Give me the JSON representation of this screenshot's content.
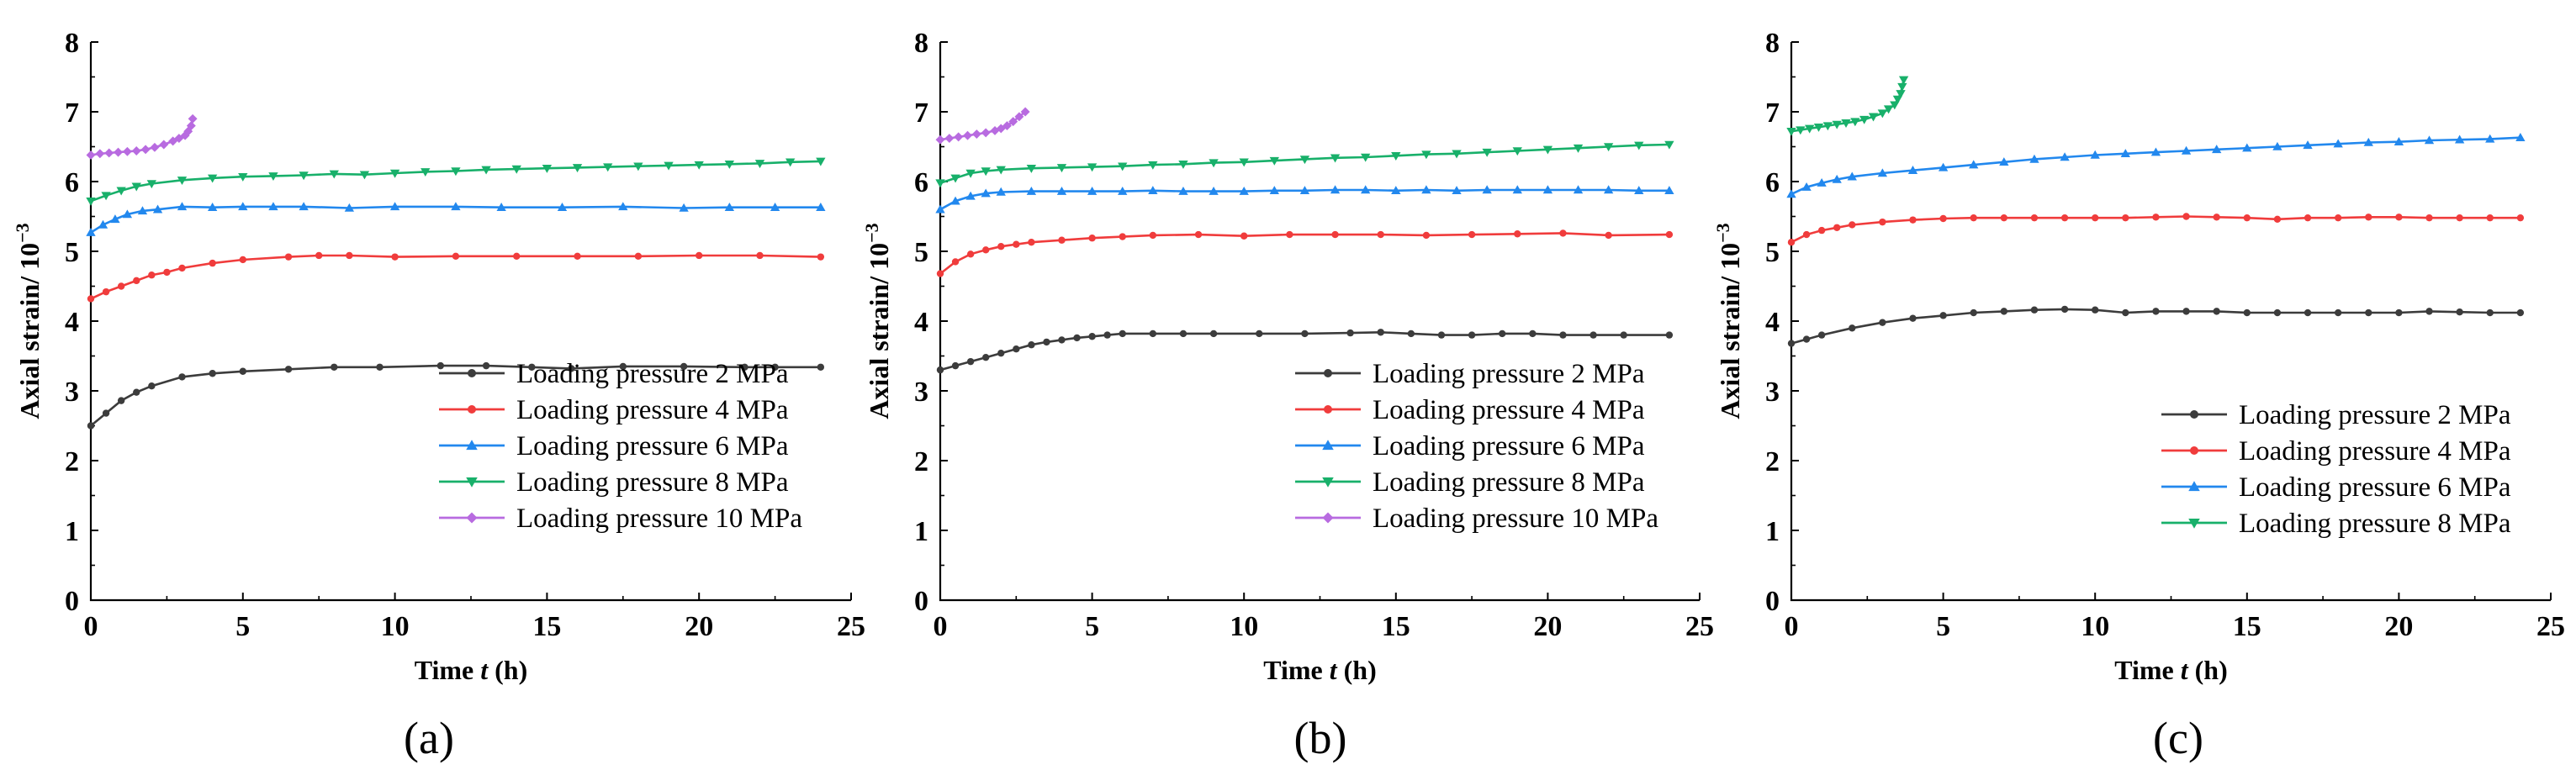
{
  "chart_data": [
    {
      "type": "line",
      "panel_label": "(a)",
      "xlabel_prefix": "Time ",
      "xlabel_var": "t",
      "xlabel_suffix": " (h)",
      "ylabel_prefix": "Axial strain/ 10",
      "ylabel_exp": "−3",
      "xlim": [
        0,
        25
      ],
      "ylim": [
        0,
        8
      ],
      "x_ticks": [
        "0",
        "5",
        "10",
        "15",
        "20",
        "25"
      ],
      "y_ticks": [
        "0",
        "1",
        "2",
        "3",
        "4",
        "5",
        "6",
        "7",
        "8"
      ],
      "legend_position": "lower-right",
      "series": [
        {
          "name": "Loading pressure 2 MPa",
          "color": "#3c3c3c",
          "marker": "circle",
          "x": [
            0,
            0.5,
            1,
            1.5,
            2,
            3,
            4,
            5,
            6.5,
            8,
            9.5,
            11.5,
            13,
            14.5,
            15.8,
            17.5,
            19.5,
            21.5,
            22.5,
            24
          ],
          "y": [
            2.5,
            2.68,
            2.86,
            2.98,
            3.07,
            3.2,
            3.25,
            3.28,
            3.31,
            3.34,
            3.34,
            3.36,
            3.36,
            3.34,
            3.32,
            3.35,
            3.35,
            3.34,
            3.34,
            3.34
          ]
        },
        {
          "name": "Loading pressure 4 MPa",
          "color": "#f03c3c",
          "marker": "circle",
          "x": [
            0,
            0.5,
            1,
            1.5,
            2,
            2.5,
            3,
            4,
            5,
            6.5,
            7.5,
            8.5,
            10,
            12,
            14,
            16,
            18,
            20,
            22,
            24
          ],
          "y": [
            4.32,
            4.42,
            4.5,
            4.58,
            4.66,
            4.7,
            4.76,
            4.83,
            4.88,
            4.92,
            4.94,
            4.94,
            4.92,
            4.93,
            4.93,
            4.93,
            4.93,
            4.94,
            4.94,
            4.92
          ]
        },
        {
          "name": "Loading pressure 6 MPa",
          "color": "#2288ee",
          "marker": "triangle-up",
          "x": [
            0,
            0.4,
            0.8,
            1.2,
            1.7,
            2.2,
            3,
            4,
            5,
            6,
            7,
            8.5,
            10,
            12,
            13.5,
            15.5,
            17.5,
            19.5,
            21,
            22.5,
            24
          ],
          "y": [
            5.27,
            5.38,
            5.46,
            5.53,
            5.58,
            5.6,
            5.64,
            5.63,
            5.64,
            5.64,
            5.64,
            5.62,
            5.64,
            5.64,
            5.63,
            5.63,
            5.64,
            5.62,
            5.63,
            5.63,
            5.63
          ]
        },
        {
          "name": "Loading pressure 8 MPa",
          "color": "#18b06a",
          "marker": "triangle-down",
          "x": [
            0,
            0.5,
            1,
            1.5,
            2,
            3,
            4,
            5,
            6,
            7,
            8,
            9,
            10,
            11,
            12,
            13,
            14,
            15,
            16,
            17,
            18,
            19,
            20,
            21,
            22,
            23,
            24
          ],
          "y": [
            5.72,
            5.8,
            5.87,
            5.93,
            5.97,
            6.02,
            6.05,
            6.07,
            6.08,
            6.09,
            6.11,
            6.1,
            6.12,
            6.14,
            6.15,
            6.17,
            6.18,
            6.19,
            6.2,
            6.21,
            6.22,
            6.23,
            6.24,
            6.25,
            6.26,
            6.28,
            6.29
          ]
        },
        {
          "name": "Loading pressure 10 MPa",
          "color": "#b86be0",
          "marker": "diamond",
          "x": [
            0,
            0.3,
            0.6,
            0.9,
            1.2,
            1.5,
            1.8,
            2.1,
            2.4,
            2.7,
            2.9,
            3.1,
            3.2,
            3.3,
            3.35
          ],
          "y": [
            6.38,
            6.4,
            6.41,
            6.42,
            6.43,
            6.44,
            6.46,
            6.49,
            6.53,
            6.58,
            6.62,
            6.66,
            6.72,
            6.8,
            6.9
          ]
        }
      ]
    },
    {
      "type": "line",
      "panel_label": "(b)",
      "xlabel_prefix": "Time ",
      "xlabel_var": "t",
      "xlabel_suffix": " (h)",
      "ylabel_prefix": "Axial strain/ 10",
      "ylabel_exp": "−3",
      "xlim": [
        0,
        25
      ],
      "ylim": [
        0,
        8
      ],
      "x_ticks": [
        "0",
        "5",
        "10",
        "15",
        "20",
        "25"
      ],
      "y_ticks": [
        "0",
        "1",
        "2",
        "3",
        "4",
        "5",
        "6",
        "7",
        "8"
      ],
      "legend_position": "lower-right",
      "series": [
        {
          "name": "Loading pressure 2 MPa",
          "color": "#3c3c3c",
          "marker": "circle",
          "x": [
            0,
            0.5,
            1,
            1.5,
            2,
            2.5,
            3,
            3.5,
            4,
            4.5,
            5,
            5.5,
            6,
            7,
            8,
            9,
            10.5,
            12,
            13.5,
            14.5,
            15.5,
            16.5,
            17.5,
            18.5,
            19.5,
            20.5,
            21.5,
            22.5,
            24
          ],
          "y": [
            3.3,
            3.36,
            3.42,
            3.48,
            3.54,
            3.6,
            3.66,
            3.7,
            3.73,
            3.76,
            3.78,
            3.8,
            3.82,
            3.82,
            3.82,
            3.82,
            3.82,
            3.82,
            3.83,
            3.84,
            3.82,
            3.8,
            3.8,
            3.82,
            3.82,
            3.8,
            3.8,
            3.8,
            3.8
          ]
        },
        {
          "name": "Loading pressure 4 MPa",
          "color": "#f03c3c",
          "marker": "circle",
          "x": [
            0,
            0.5,
            1,
            1.5,
            2,
            2.5,
            3,
            4,
            5,
            6,
            7,
            8.5,
            10,
            11.5,
            13,
            14.5,
            16,
            17.5,
            19,
            20.5,
            22,
            24
          ],
          "y": [
            4.68,
            4.85,
            4.96,
            5.02,
            5.07,
            5.1,
            5.13,
            5.16,
            5.19,
            5.21,
            5.23,
            5.24,
            5.22,
            5.24,
            5.24,
            5.24,
            5.23,
            5.24,
            5.25,
            5.26,
            5.23,
            5.24
          ]
        },
        {
          "name": "Loading pressure 6 MPa",
          "color": "#2288ee",
          "marker": "triangle-up",
          "x": [
            0,
            0.5,
            1,
            1.5,
            2,
            3,
            4,
            5,
            6,
            7,
            8,
            9,
            10,
            11,
            12,
            13,
            14,
            15,
            16,
            17,
            18,
            19,
            20,
            21,
            22,
            23,
            24
          ],
          "y": [
            5.6,
            5.72,
            5.79,
            5.83,
            5.85,
            5.86,
            5.86,
            5.86,
            5.86,
            5.87,
            5.86,
            5.86,
            5.86,
            5.87,
            5.87,
            5.88,
            5.88,
            5.87,
            5.88,
            5.87,
            5.88,
            5.88,
            5.88,
            5.88,
            5.88,
            5.87,
            5.87
          ]
        },
        {
          "name": "Loading pressure 8 MPa",
          "color": "#18b06a",
          "marker": "triangle-down",
          "x": [
            0,
            0.5,
            1,
            1.5,
            2,
            3,
            4,
            5,
            6,
            7,
            8,
            9,
            10,
            11,
            12,
            13,
            14,
            15,
            16,
            17,
            18,
            19,
            20,
            21,
            22,
            23,
            24
          ],
          "y": [
            5.98,
            6.05,
            6.12,
            6.15,
            6.17,
            6.19,
            6.2,
            6.21,
            6.22,
            6.24,
            6.25,
            6.27,
            6.28,
            6.3,
            6.32,
            6.34,
            6.35,
            6.37,
            6.39,
            6.4,
            6.42,
            6.44,
            6.46,
            6.48,
            6.5,
            6.52,
            6.53
          ]
        },
        {
          "name": "Loading pressure 10 MPa",
          "color": "#b86be0",
          "marker": "diamond",
          "x": [
            0,
            0.3,
            0.6,
            0.9,
            1.2,
            1.5,
            1.8,
            2.0,
            2.2,
            2.4,
            2.6,
            2.8
          ],
          "y": [
            6.6,
            6.62,
            6.64,
            6.66,
            6.68,
            6.7,
            6.73,
            6.76,
            6.8,
            6.86,
            6.93,
            7.0
          ]
        }
      ]
    },
    {
      "type": "line",
      "panel_label": "(c)",
      "xlabel_prefix": "Time ",
      "xlabel_var": "t",
      "xlabel_suffix": " (h)",
      "ylabel_prefix": "Axial strain/ 10",
      "ylabel_exp": "−3",
      "xlim": [
        0,
        25
      ],
      "ylim": [
        0,
        8
      ],
      "x_ticks": [
        "0",
        "5",
        "10",
        "15",
        "20",
        "25"
      ],
      "y_ticks": [
        "0",
        "1",
        "2",
        "3",
        "4",
        "5",
        "6",
        "7",
        "8"
      ],
      "legend_position": "lower-right",
      "series": [
        {
          "name": "Loading pressure 2 MPa",
          "color": "#3c3c3c",
          "marker": "circle",
          "x": [
            0,
            0.5,
            1,
            2,
            3,
            4,
            5,
            6,
            7,
            8,
            9,
            10,
            11,
            12,
            13,
            14,
            15,
            16,
            17,
            18,
            19,
            20,
            21,
            22,
            23,
            24
          ],
          "y": [
            3.68,
            3.74,
            3.8,
            3.9,
            3.98,
            4.04,
            4.08,
            4.12,
            4.14,
            4.16,
            4.17,
            4.16,
            4.12,
            4.14,
            4.14,
            4.14,
            4.12,
            4.12,
            4.12,
            4.12,
            4.12,
            4.12,
            4.14,
            4.13,
            4.12,
            4.12
          ]
        },
        {
          "name": "Loading pressure 4 MPa",
          "color": "#f03c3c",
          "marker": "circle",
          "x": [
            0,
            0.5,
            1,
            1.5,
            2,
            3,
            4,
            5,
            6,
            7,
            8,
            9,
            10,
            11,
            12,
            13,
            14,
            15,
            16,
            17,
            18,
            19,
            20,
            21,
            22,
            23,
            24
          ],
          "y": [
            5.13,
            5.24,
            5.3,
            5.34,
            5.38,
            5.42,
            5.45,
            5.47,
            5.48,
            5.48,
            5.48,
            5.48,
            5.48,
            5.48,
            5.49,
            5.5,
            5.49,
            5.48,
            5.46,
            5.48,
            5.48,
            5.49,
            5.49,
            5.48,
            5.48,
            5.48,
            5.48
          ]
        },
        {
          "name": "Loading pressure 6 MPa",
          "color": "#2288ee",
          "marker": "triangle-up",
          "x": [
            0,
            0.5,
            1,
            1.5,
            2,
            3,
            4,
            5,
            6,
            7,
            8,
            9,
            10,
            11,
            12,
            13,
            14,
            15,
            16,
            17,
            18,
            19,
            20,
            21,
            22,
            23,
            24
          ],
          "y": [
            5.82,
            5.92,
            5.98,
            6.03,
            6.07,
            6.12,
            6.16,
            6.2,
            6.24,
            6.28,
            6.32,
            6.35,
            6.38,
            6.4,
            6.42,
            6.44,
            6.46,
            6.48,
            6.5,
            6.52,
            6.54,
            6.56,
            6.57,
            6.59,
            6.6,
            6.61,
            6.63
          ]
        },
        {
          "name": "Loading pressure 8 MPa",
          "color": "#18b06a",
          "marker": "triangle-down",
          "x": [
            0,
            0.3,
            0.6,
            0.9,
            1.2,
            1.5,
            1.8,
            2.1,
            2.4,
            2.7,
            3.0,
            3.2,
            3.4,
            3.5,
            3.6,
            3.65,
            3.7
          ],
          "y": [
            6.72,
            6.74,
            6.76,
            6.78,
            6.8,
            6.82,
            6.84,
            6.86,
            6.89,
            6.93,
            6.98,
            7.04,
            7.1,
            7.18,
            7.26,
            7.36,
            7.46
          ]
        }
      ]
    }
  ]
}
